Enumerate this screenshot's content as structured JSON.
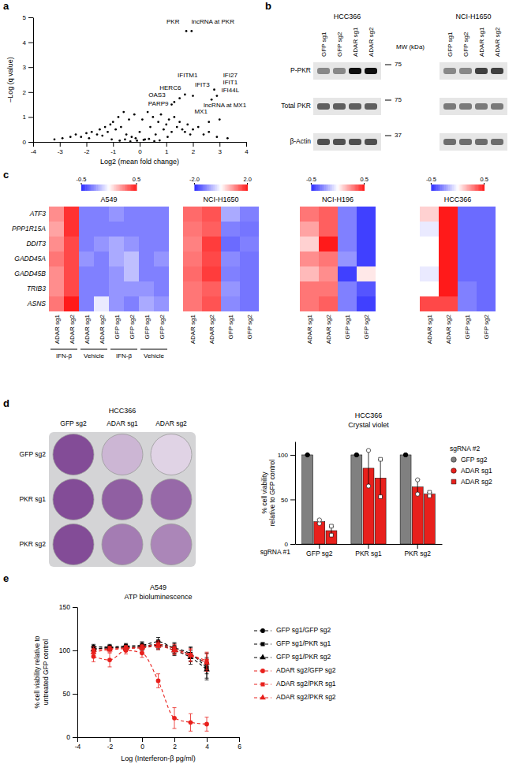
{
  "panel_labels": [
    "a",
    "b",
    "c",
    "d",
    "e"
  ],
  "chart_data": [
    {
      "type": "scatter",
      "x_label": "Log2 (mean fold change)",
      "y_label": "–Log (q value)",
      "color": "#000000",
      "marker": "circle",
      "x": [
        -3.2,
        -2.9,
        -2.6,
        -2.4,
        -2.2,
        -2.0,
        -1.9,
        -1.8,
        -1.6,
        -1.5,
        -1.4,
        -1.3,
        -1.2,
        -1.1,
        -1.0,
        -0.9,
        -0.8,
        -0.7,
        -0.6,
        -0.5,
        -0.4,
        -0.3,
        -0.2,
        -0.1,
        0.0,
        0.1,
        0.2,
        0.3,
        0.4,
        0.5,
        0.6,
        0.7,
        0.8,
        0.9,
        1.0,
        1.1,
        1.2,
        1.3,
        1.4,
        1.5,
        1.6,
        1.7,
        1.8,
        1.9,
        2.0,
        2.2,
        2.4,
        2.6,
        2.9,
        3.3,
        -0.75,
        -0.55,
        -0.35,
        -0.15,
        0.15,
        0.35,
        0.55,
        0.75,
        -1.05,
        1.05,
        1.75,
        1.95,
        1.5,
        1.7,
        2.0,
        2.8,
        2.9,
        2.7,
        1.3,
        1.2,
        2.6,
        3.0
      ],
      "values": [
        0.1,
        0.15,
        0.2,
        0.3,
        0.2,
        0.35,
        0.15,
        0.4,
        0.3,
        0.5,
        0.25,
        0.6,
        0.4,
        0.7,
        0.8,
        0.5,
        1.0,
        0.6,
        1.2,
        0.3,
        0.9,
        0.2,
        1.1,
        0.05,
        0.4,
        0.9,
        0.1,
        1.2,
        0.6,
        1.0,
        0.3,
        0.8,
        1.1,
        0.5,
        0.7,
        0.9,
        0.4,
        1.0,
        0.6,
        0.8,
        0.5,
        0.4,
        0.7,
        0.3,
        0.5,
        0.6,
        0.3,
        0.4,
        0.2,
        0.15,
        0.05,
        0.1,
        0.02,
        0.15,
        0.08,
        0.12,
        0.03,
        0.06,
        0.1,
        0.2,
        4.45,
        4.45,
        1.75,
        1.9,
        1.85,
        2.1,
        1.85,
        1.7,
        1.6,
        1.5,
        0.8,
        0.9
      ],
      "xlim": [
        -4,
        4
      ],
      "ylim": [
        0,
        5
      ],
      "xticks": [
        -4,
        -3,
        -2,
        -1,
        0,
        1,
        2,
        3,
        4
      ],
      "yticks": [
        0,
        1,
        2,
        3,
        4,
        5
      ],
      "annotations": [
        {
          "text": "PKR",
          "x": 1.25,
          "y": 4.75
        },
        {
          "text": "lncRNA at PKR",
          "x": 2.75,
          "y": 4.75
        },
        {
          "text": "HERC6",
          "x": 1.15,
          "y": 2.1
        },
        {
          "text": "IFITM1",
          "x": 1.8,
          "y": 2.6
        },
        {
          "text": "IFIT3",
          "x": 2.35,
          "y": 2.2
        },
        {
          "text": "IFI27",
          "x": 3.4,
          "y": 2.6
        },
        {
          "text": "IFIT1",
          "x": 3.4,
          "y": 2.3
        },
        {
          "text": "IFI44L",
          "x": 3.4,
          "y": 2.0
        },
        {
          "text": "OAS3",
          "x": 0.65,
          "y": 1.8
        },
        {
          "text": "PARP9",
          "x": 0.7,
          "y": 1.45
        },
        {
          "text": "MX1",
          "x": 2.3,
          "y": 1.15
        },
        {
          "text": "lncRNA at MX1",
          "x": 3.2,
          "y": 1.4
        }
      ]
    },
    {
      "type": "heatmap",
      "title": "A549",
      "rows": [
        "ATF3",
        "PPP1R15A",
        "DDIT3",
        "GADD45A",
        "GADD45B",
        "TRIB3",
        "ASNS"
      ],
      "columns": [
        "ADAR sg1",
        "ADAR sg2",
        "ADAR sg1",
        "ADAR sg2",
        "GFP sg1",
        "GFP sg2",
        "GFP sg1",
        "GFP sg2"
      ],
      "column_groups": [
        "IFN-β",
        "Vehicle",
        "IFN-β",
        "Vehicle"
      ],
      "cells": [
        [
          0.25,
          0.45,
          -0.3,
          -0.3,
          -0.25,
          -0.3,
          -0.3,
          -0.3
        ],
        [
          0.2,
          0.45,
          -0.3,
          -0.3,
          -0.3,
          -0.3,
          -0.3,
          -0.3
        ],
        [
          0.25,
          0.4,
          -0.3,
          -0.25,
          -0.2,
          -0.25,
          -0.3,
          -0.3
        ],
        [
          0.3,
          0.4,
          -0.25,
          -0.3,
          -0.2,
          -0.15,
          -0.3,
          -0.25
        ],
        [
          0.25,
          0.4,
          -0.3,
          -0.3,
          -0.25,
          -0.15,
          -0.3,
          -0.3
        ],
        [
          0.25,
          0.4,
          -0.3,
          -0.3,
          -0.25,
          -0.25,
          -0.25,
          -0.3
        ],
        [
          0.3,
          0.5,
          -0.3,
          -0.05,
          -0.25,
          -0.3,
          -0.2,
          -0.25
        ]
      ],
      "colorbar_range": [
        -0.5,
        0.5
      ],
      "colorbar_ticks": [
        -0.5,
        0.5
      ]
    },
    {
      "type": "heatmap",
      "title": "NCI-H1650",
      "columns": [
        "ADAR sg1",
        "ADAR sg2",
        "GFP sg1",
        "GFP sg2"
      ],
      "cells": [
        [
          1.3,
          1.5,
          -0.8,
          -1.2
        ],
        [
          1.2,
          1.4,
          -1.2,
          -1.3
        ],
        [
          1.1,
          1.7,
          -1.4,
          -1.2
        ],
        [
          1.2,
          1.6,
          -1.1,
          -1.3
        ],
        [
          1.3,
          1.7,
          -1.2,
          -1.3
        ],
        [
          1.2,
          1.4,
          -1.0,
          -1.3
        ],
        [
          1.2,
          1.5,
          -1.1,
          -1.3
        ]
      ],
      "colorbar_range": [
        -2,
        2
      ],
      "colorbar_ticks": [
        {
          "value": -2,
          "label": "-2.0"
        },
        {
          "value": 2,
          "label": "2.0"
        }
      ]
    },
    {
      "type": "heatmap",
      "title": "NCI-H196",
      "columns": [
        "ADAR sg1",
        "ADAR sg2",
        "GFP sg1",
        "GFP sg2"
      ],
      "cells": [
        [
          0.3,
          0.35,
          -0.3,
          -0.45
        ],
        [
          0.2,
          0.35,
          -0.3,
          -0.45
        ],
        [
          0.1,
          0.5,
          -0.3,
          -0.45
        ],
        [
          0.25,
          0.3,
          -0.25,
          -0.45
        ],
        [
          0.15,
          0.25,
          -0.45,
          0.05
        ],
        [
          0.3,
          0.3,
          -0.3,
          -0.4
        ],
        [
          0.3,
          0.35,
          -0.3,
          -0.45
        ]
      ],
      "colorbar_range": [
        -0.5,
        0.5
      ],
      "colorbar_ticks": [
        -0.5,
        0.5
      ]
    },
    {
      "type": "heatmap",
      "title": "HCC366",
      "columns": [
        "ADAR sg1",
        "ADAR sg2",
        "GFP sg1",
        "GFP sg2"
      ],
      "cells": [
        [
          0.1,
          0.5,
          -0.35,
          -0.35
        ],
        [
          -0.05,
          0.5,
          -0.35,
          -0.35
        ],
        [
          0.0,
          0.5,
          -0.35,
          -0.35
        ],
        [
          0.0,
          0.5,
          -0.35,
          -0.35
        ],
        [
          -0.05,
          0.5,
          -0.35,
          -0.35
        ],
        [
          0.0,
          0.5,
          -0.3,
          -0.35
        ],
        [
          0.4,
          0.4,
          -0.3,
          -0.35
        ]
      ],
      "colorbar_range": [
        -0.5,
        0.5
      ],
      "colorbar_ticks": [
        -0.5,
        0.5
      ]
    },
    {
      "type": "bar",
      "title": "HCC366",
      "subtitle": "Crystal violet",
      "y_label": [
        "% cell viability",
        "relative to GFP control"
      ],
      "x_label": "sgRNA #1",
      "categories": [
        "GFP sg2",
        "PKR sg1",
        "PKR sg2"
      ],
      "legend": "right",
      "legend_title": "sgRNA #2",
      "ylim": [
        0,
        115
      ],
      "yticks": [
        0,
        50,
        100
      ],
      "series": [
        {
          "name": "GFP sg2",
          "color": "#808080",
          "marker": "circle",
          "values": [
            100,
            100,
            100
          ],
          "errors": [
            0,
            0,
            0
          ],
          "points": [
            [
              100,
              100
            ],
            [
              100,
              100
            ],
            [
              100,
              100
            ]
          ]
        },
        {
          "name": "ADAR sg1",
          "color": "#e8201c",
          "marker": "circle-open",
          "values": [
            25,
            85,
            64
          ],
          "errors": [
            2,
            20,
            8
          ],
          "points": [
            [
              23,
              27
            ],
            [
              105,
              65
            ],
            [
              72,
              56
            ]
          ]
        },
        {
          "name": "ADAR sg2",
          "color": "#e8201c",
          "marker": "square-open",
          "values": [
            15,
            74,
            56
          ],
          "errors": [
            5,
            21,
            2
          ],
          "points": [
            [
              10,
              20
            ],
            [
              95,
              53
            ],
            [
              58,
              54
            ]
          ]
        }
      ]
    },
    {
      "type": "line",
      "title": "A549",
      "subtitle": "ATP bioluminescence",
      "x_label": "Log (Interferon-β pg/ml)",
      "y_label": [
        "% cell viability relative to",
        "untreated GFP control"
      ],
      "x": [
        -3,
        -2,
        -1,
        0,
        1,
        2,
        3,
        4
      ],
      "xlim": [
        -4,
        6
      ],
      "ylim": [
        0,
        150
      ],
      "xticks": [
        -4,
        -2,
        0,
        2,
        4,
        6
      ],
      "yticks": [
        0,
        50,
        100,
        150
      ],
      "legend": "right",
      "line_style": "dashed",
      "series": [
        {
          "name": "GFP sg1/GFP sg2",
          "color": "#000000",
          "marker": "circle",
          "values": [
            104,
            104,
            105,
            106,
            110,
            102,
            95,
            85
          ],
          "errors": [
            3,
            3,
            3,
            4,
            5,
            6,
            8,
            12
          ]
        },
        {
          "name": "GFP sg1/PKR sg1",
          "color": "#000000",
          "marker": "square",
          "values": [
            102,
            103,
            104,
            105,
            107,
            103,
            96,
            80
          ],
          "errors": [
            3,
            3,
            3,
            4,
            5,
            6,
            8,
            12
          ]
        },
        {
          "name": "GFP sg1/PKR sg2",
          "color": "#000000",
          "marker": "triangle",
          "values": [
            101,
            103,
            103,
            104,
            106,
            100,
            92,
            78
          ],
          "errors": [
            3,
            3,
            3,
            4,
            5,
            6,
            8,
            12
          ]
        },
        {
          "name": "ADAR sg2/GFP sg2",
          "color": "#e8201c",
          "marker": "circle",
          "values": [
            93,
            89,
            100,
            97,
            65,
            22,
            17,
            15
          ],
          "errors": [
            6,
            8,
            4,
            5,
            8,
            12,
            10,
            8
          ]
        },
        {
          "name": "ADAR sg2/PKR sg1",
          "color": "#e8201c",
          "marker": "square",
          "values": [
            100,
            102,
            103,
            104,
            107,
            102,
            95,
            88
          ],
          "errors": [
            4,
            3,
            3,
            3,
            4,
            5,
            7,
            10
          ]
        },
        {
          "name": "ADAR sg2/PKR sg2",
          "color": "#e8201c",
          "marker": "triangle",
          "values": [
            98,
            101,
            102,
            103,
            105,
            100,
            94,
            86
          ],
          "errors": [
            4,
            3,
            3,
            3,
            4,
            5,
            7,
            10
          ]
        }
      ]
    }
  ],
  "blot": {
    "rows": [
      "P-PKR",
      "Total PKR",
      "β-Actin"
    ],
    "mw_label": "MW (kDa)",
    "mw_markers": [
      75,
      75,
      37
    ],
    "panels": [
      {
        "title": "HCC366",
        "lanes": [
          "GFP sg1",
          "GFP sg2",
          "ADAR sg1",
          "ADAR sg2"
        ],
        "intensity": [
          [
            0.55,
            0.55,
            0.95,
            0.95
          ],
          [
            0.7,
            0.7,
            0.7,
            0.7
          ],
          [
            0.75,
            0.75,
            0.75,
            0.75
          ]
        ]
      },
      {
        "title": "NCI-H1650",
        "lanes": [
          "GFP sg1",
          "GFP sg2",
          "ADAR sg1",
          "ADAR sg2"
        ],
        "intensity": [
          [
            0.55,
            0.55,
            0.8,
            0.8
          ],
          [
            0.6,
            0.6,
            0.6,
            0.6
          ],
          [
            0.65,
            0.65,
            0.65,
            0.65
          ]
        ]
      }
    ]
  },
  "plate": {
    "title": "HCC366",
    "columns": [
      "GFP sg2",
      "ADAR sg1",
      "ADAR sg2"
    ],
    "rows": [
      "GFP sg2",
      "PKR sg1",
      "PKR sg2"
    ],
    "stain_intensity": [
      [
        0.85,
        0.3,
        0.15
      ],
      [
        0.85,
        0.75,
        0.7
      ],
      [
        0.85,
        0.6,
        0.55
      ]
    ]
  }
}
